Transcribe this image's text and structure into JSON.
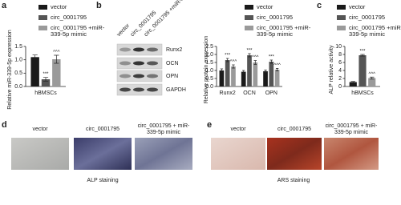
{
  "chart_data": [
    {
      "panel": "a",
      "type": "bar",
      "ylabel": "Relative miR-339-5p expression",
      "categories": [
        "hBMSCs"
      ],
      "series": [
        {
          "name": "vector",
          "color": "#1a1a1a",
          "values": [
            1.1
          ],
          "errors": [
            0.08
          ]
        },
        {
          "name": "circ_0001795",
          "color": "#555555",
          "values": [
            0.27
          ],
          "errors": [
            0.07
          ],
          "annotations": [
            "***"
          ]
        },
        {
          "name": "circ_0001795 +miR-339-5p mimic",
          "color": "#9a9a9a",
          "values": [
            1.02
          ],
          "errors": [
            0.15
          ],
          "annotations": [
            "^^^"
          ]
        }
      ],
      "ylim": [
        0,
        1.5
      ],
      "yticks": [
        {
          "value": 0,
          "label": "0.0"
        },
        0.5,
        {
          "value": 1,
          "label": "1.0"
        },
        1.5
      ]
    },
    {
      "panel": "b",
      "type": "bar",
      "ylabel": "Relative protein expression",
      "categories": [
        "Runx2",
        "OCN",
        "OPN"
      ],
      "series": [
        {
          "name": "vector",
          "color": "#1a1a1a",
          "values": [
            1.0,
            0.92,
            0.95
          ],
          "errors": [
            0.1,
            0.08,
            0.08
          ]
        },
        {
          "name": "circ_0001795",
          "color": "#555555",
          "values": [
            1.65,
            1.95,
            1.55
          ],
          "errors": [
            0.1,
            0.1,
            0.1
          ],
          "annotations": [
            "***",
            "***",
            "***"
          ]
        },
        {
          "name": "circ_0001795 +miR-339-5p mimic",
          "color": "#9a9a9a",
          "values": [
            1.25,
            1.5,
            1.05
          ],
          "errors": [
            0.1,
            0.12,
            0.08
          ],
          "annotations": [
            "^^^",
            "^^^",
            "^^^"
          ]
        }
      ],
      "ylim": [
        0,
        2.5
      ],
      "yticks": [
        {
          "value": 0,
          "label": "0.0"
        },
        0.5,
        {
          "value": 1,
          "label": "1.0"
        },
        1.5,
        {
          "value": 2,
          "label": "2.0"
        },
        2.5
      ]
    },
    {
      "panel": "c",
      "type": "bar",
      "ylabel": "ALP relative activity",
      "categories": [
        "hBMSCs"
      ],
      "series": [
        {
          "name": "vector",
          "color": "#1a1a1a",
          "values": [
            1.1
          ],
          "errors": [
            0.15
          ]
        },
        {
          "name": "circ_0001795",
          "color": "#555555",
          "values": [
            7.8
          ],
          "errors": [
            0.2
          ],
          "annotations": [
            "***"
          ]
        },
        {
          "name": "circ_0001795 +miR-339-5p mimic",
          "color": "#9a9a9a",
          "values": [
            2.1
          ],
          "errors": [
            0.25
          ],
          "annotations": [
            "^^^"
          ]
        }
      ],
      "ylim": [
        0,
        10
      ],
      "yticks": [
        0,
        2,
        4,
        6,
        8,
        10
      ]
    }
  ],
  "blot": {
    "lanes": [
      "vector",
      "circ_0001795",
      "circ_0001795 +miR-339-5p mimic"
    ],
    "proteins": [
      "Runx2",
      "OCN",
      "OPN",
      "GAPDH"
    ]
  },
  "staining": [
    {
      "panel": "d",
      "labels": [
        "vector",
        "circ_0001795",
        "circ_0001795 + miR-339-5p mimic"
      ],
      "caption": "ALP staining"
    },
    {
      "panel": "e",
      "labels": [
        "vector",
        "circ_0001795",
        "circ_0001795 + miR-339-5p mimic"
      ],
      "caption": "ARS staining"
    }
  ]
}
